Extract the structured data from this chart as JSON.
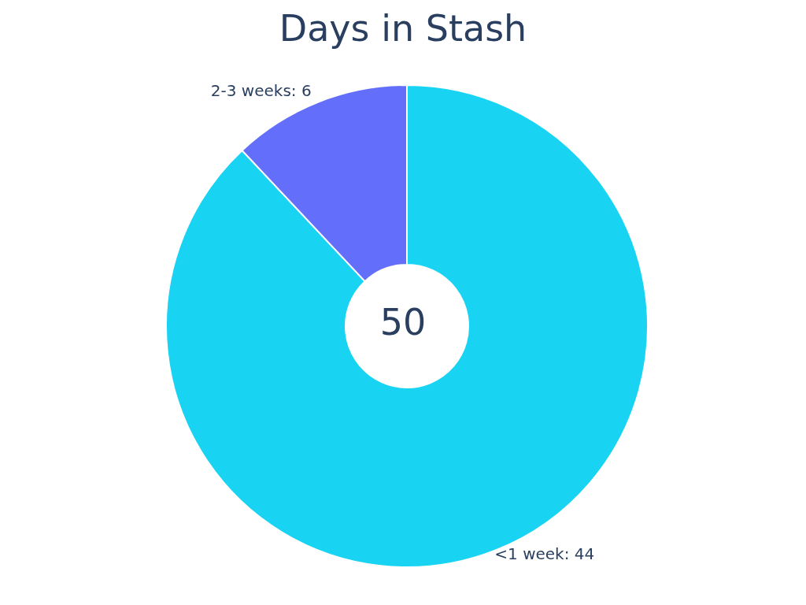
{
  "chart_data": {
    "type": "donut",
    "title": "Days in Stash",
    "categories": [
      "<1 week",
      "2-3 weeks"
    ],
    "values": [
      44,
      6
    ],
    "colors": [
      "#19d3f3",
      "#636efa"
    ],
    "value_labels": [
      ": 44",
      ": 6"
    ],
    "annotations": [
      "50"
    ]
  }
}
